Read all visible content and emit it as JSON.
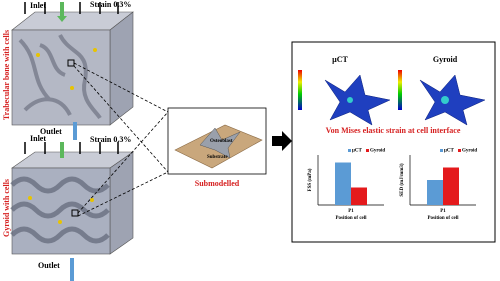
{
  "left": {
    "top": {
      "title": "Trabecular bone with cells",
      "inlet": "Inlet",
      "strain": "Strain 0.3%",
      "outlet": "Outlet"
    },
    "bottom": {
      "title": "Gyroid with cells",
      "inlet": "Inlet",
      "strain": "Strain 0.3%",
      "outlet": "Outlet"
    }
  },
  "submodel": {
    "osteoblast": "Osteoblast",
    "substrate": "Substrate",
    "caption": "Submodelled"
  },
  "results": {
    "panels": [
      "µCT",
      "Gyroid"
    ],
    "caption": "Von Mises elastic strain at cell interface",
    "charts": [
      {
        "type": "bar",
        "ylabel": "FSS (mPa)",
        "xlabel": "Position of cell",
        "categories": [
          "P1"
        ],
        "series": [
          {
            "name": "µCT",
            "color": "#5b9bd5",
            "values": [
              0.85
            ]
          },
          {
            "name": "Gyroid",
            "color": "#e41a1c",
            "values": [
              0.35
            ]
          }
        ],
        "ylim": [
          0,
          1
        ]
      },
      {
        "type": "bar",
        "ylabel": "SED (mJ/mm3)",
        "xlabel": "Position of cell",
        "categories": [
          "P1"
        ],
        "series": [
          {
            "name": "µCT",
            "color": "#5b9bd5",
            "values": [
              0.5
            ]
          },
          {
            "name": "Gyroid",
            "color": "#e41a1c",
            "values": [
              0.75
            ]
          }
        ],
        "ylim": [
          0,
          1
        ]
      }
    ]
  }
}
